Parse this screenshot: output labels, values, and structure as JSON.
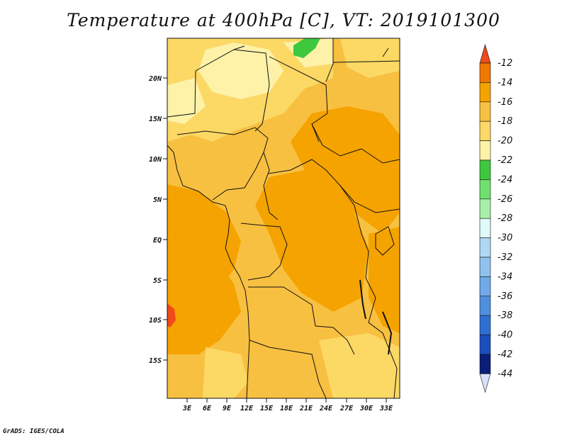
{
  "title": "Temperature at 400hPa [C], VT: 2019101300",
  "credit": "GrADS: IGES/COLA",
  "map": {
    "lat_labels": [
      "20N",
      "15N",
      "10N",
      "5N",
      "EQ",
      "5S",
      "10S",
      "15S"
    ],
    "lon_labels": [
      "3E",
      "6E",
      "9E",
      "12E",
      "15E",
      "18E",
      "21E",
      "24E",
      "27E",
      "30E",
      "33E"
    ]
  },
  "colorbar": {
    "labels": [
      "-12",
      "-14",
      "-16",
      "-18",
      "-20",
      "-22",
      "-24",
      "-26",
      "-28",
      "-30",
      "-32",
      "-34",
      "-36",
      "-38",
      "-40",
      "-42",
      "-44"
    ],
    "colors": [
      "#f04a1a",
      "#f07800",
      "#f5a300",
      "#f8c040",
      "#fcd865",
      "#fdf2a8",
      "#3ec83e",
      "#6fe06f",
      "#a8f0a8",
      "#e0fafa",
      "#b0d8f5",
      "#90c2f0",
      "#70aaea",
      "#4f8fe0",
      "#2e6fd4",
      "#1a4fc0",
      "#0a1e7a",
      "#d8e2f8"
    ]
  }
}
